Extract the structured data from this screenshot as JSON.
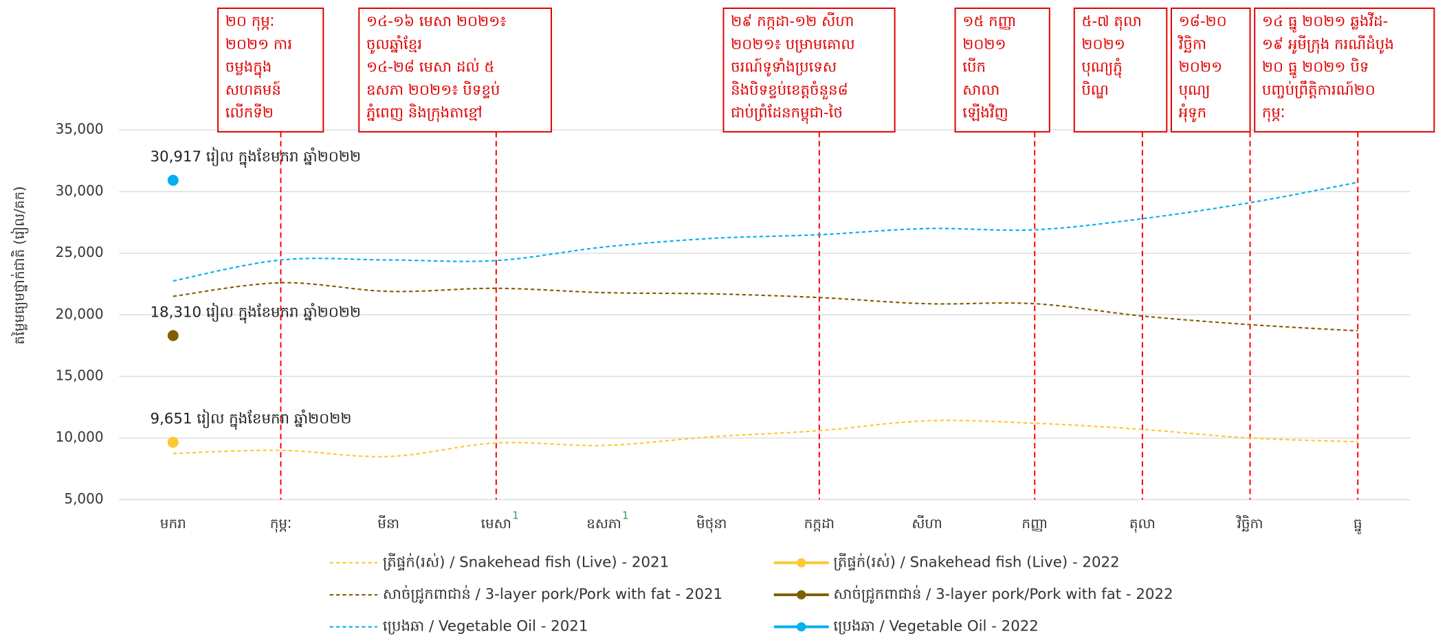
{
  "chart_data": {
    "type": "line",
    "y_label": "តម្លៃមធ្យមថ្នាក់ជាតិ (រៀល/គក)",
    "categories": [
      "មករា",
      "កុម្ភៈ",
      "មីនា",
      "មេសា",
      "ឧសភា",
      "មិថុនា",
      "កក្កដា",
      "សីហា",
      "កញ្ញា",
      "តុលា",
      "វិច្ឆិកា",
      "ធ្នូ"
    ],
    "category_notes": [
      null,
      null,
      null,
      "1",
      "1",
      null,
      null,
      null,
      null,
      null,
      null,
      null
    ],
    "ylim": [
      5000,
      35000
    ],
    "yticks": [
      {
        "value": 5000,
        "label": "5,000"
      },
      {
        "value": 10000,
        "label": "10,000"
      },
      {
        "value": 15000,
        "label": "15,000"
      },
      {
        "value": 20000,
        "label": "20,000"
      },
      {
        "value": 25000,
        "label": "25,000"
      },
      {
        "value": 30000,
        "label": "30,000"
      },
      {
        "value": 35000,
        "label": "35,000"
      }
    ],
    "grid": true,
    "series": [
      {
        "name": "ត្រីផ្ទក់(រស់) / Snakehead fish (Live) - 2021",
        "color": "#fdc834",
        "dashed": true,
        "values": [
          8750,
          9000,
          8500,
          9600,
          9400,
          10100,
          10600,
          11400,
          11200,
          10700,
          10000,
          9700
        ]
      },
      {
        "name": "ត្រីផ្ទក់(រស់) / Snakehead fish (Live) - 2022",
        "color": "#fdc834",
        "dashed": false,
        "values": [
          9651,
          null,
          null,
          null,
          null,
          null,
          null,
          null,
          null,
          null,
          null,
          null
        ],
        "value_labels": [
          "9,651 រៀល ក្នុងខែមករា ឆ្នាំ២០២២",
          null,
          null,
          null,
          null,
          null,
          null,
          null,
          null,
          null,
          null,
          null
        ]
      },
      {
        "name": "សាច់ជ្រូកពាជាន់ /  3-layer pork/Pork with fat - 2021",
        "color": "#7f6000",
        "dashed": true,
        "values": [
          21500,
          22600,
          21900,
          22150,
          21800,
          21700,
          21400,
          20900,
          20900,
          19900,
          19200,
          18700
        ]
      },
      {
        "name": "សាច់ជ្រូកពាជាន់ /  3-layer pork/Pork with fat - 2022",
        "color": "#7f6000",
        "dashed": false,
        "values": [
          18310,
          null,
          null,
          null,
          null,
          null,
          null,
          null,
          null,
          null,
          null,
          null
        ],
        "value_labels": [
          "18,310 រៀល ក្នុងខែមករា ឆ្នាំ២០២២",
          null,
          null,
          null,
          null,
          null,
          null,
          null,
          null,
          null,
          null,
          null
        ]
      },
      {
        "name": "ប្រេងឆា / Vegetable Oil - 2021",
        "color": "#00b0f0",
        "dashed": true,
        "values": [
          22750,
          24450,
          24450,
          24400,
          25500,
          26200,
          26500,
          27000,
          26900,
          27800,
          29100,
          30750
        ]
      },
      {
        "name": "ប្រេងឆា / Vegetable Oil - 2022",
        "color": "#00b0f0",
        "dashed": false,
        "values": [
          30917,
          null,
          null,
          null,
          null,
          null,
          null,
          null,
          null,
          null,
          null,
          null
        ],
        "value_labels": [
          "30,917 រៀល ក្នុងខែមករា ឆ្នាំ២០២២",
          null,
          null,
          null,
          null,
          null,
          null,
          null,
          null,
          null,
          null,
          null
        ]
      }
    ],
    "annotations": [
      [
        "២០ កុម្ភៈ",
        "២០២១ ការ",
        "ចម្លងក្នុង",
        "សហគមន៍",
        "លើកទី២"
      ],
      [
        "១៤-១៦ មេសា ២០២១៖",
        "ចូលឆ្នាំខ្មែរ",
        "១៤-២៨ មេសា ដល់ ៥",
        "ឧសភា ២០២១៖ បិទខ្ទប់",
        "ភ្នំពេញ និងក្រុងតាខ្មៅ"
      ],
      [
        "២៩ កក្កដា-១២ សីហា",
        "២០២១៖ បម្រាមគោល",
        "ចរណ៍ទូទាំងប្រទេស",
        "និងបិទខ្ទប់ខេត្តចំនួន៨",
        "ជាប់ព្រំដែនកម្ពុជា-ថៃ"
      ],
      [
        "១៥ កញ្ញា",
        "២០២១",
        "បើក",
        "សាលា",
        "ឡើងវិញ"
      ],
      [
        "៥-៧ តុលា",
        "២០២១",
        "បុណ្យភ្ជុំ",
        "បិណ្ឌ"
      ],
      [
        "១៨-២០",
        "វិច្ឆិកា",
        "២០២១",
        "បុណ្យ",
        "អុំទូក"
      ],
      [
        "១៤ ធ្នូ ២០២១ ឆ្លងវីដ-",
        "១៩ អូមីក្រុង ករណីដំបូង",
        "២០ ធ្នូ ២០២១ បិទ",
        "បញ្ចប់ព្រឹត្តិការណ៍២០",
        "កុម្ភៈ"
      ]
    ]
  }
}
